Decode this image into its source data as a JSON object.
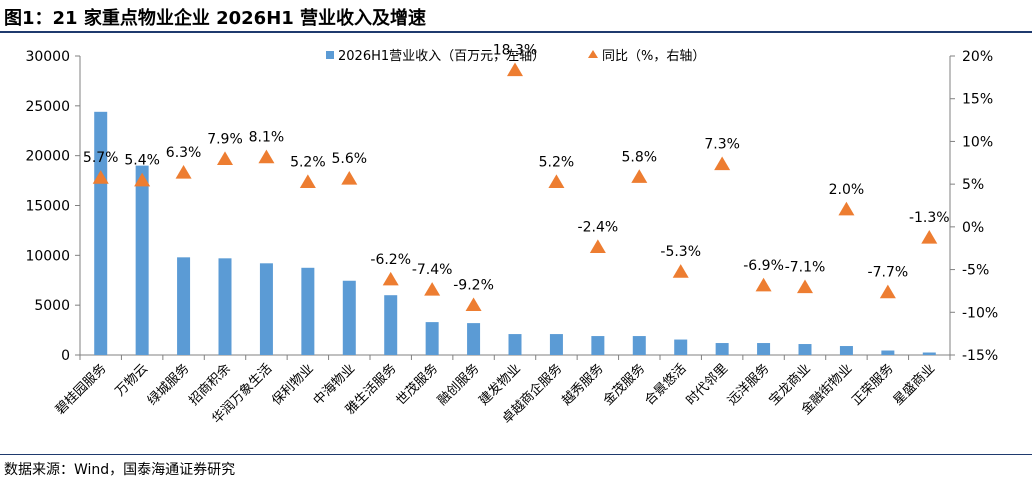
{
  "title": "图1：21 家重点物业企业 2026H1 营业收入及增速",
  "source": "数据来源：Wind，国泰海通证券研究",
  "chart_data": {
    "type": "bar",
    "categories": [
      "碧桂园服务",
      "万物云",
      "绿城服务",
      "招商积余",
      "华润万象生活",
      "保利物业",
      "中海物业",
      "雅生活服务",
      "世茂服务",
      "融创服务",
      "建发物业",
      "卓越商企服务",
      "越秀服务",
      "金茂服务",
      "合景悠活",
      "时代邻里",
      "远洋服务",
      "宝龙商业",
      "金融街物业",
      "正荣服务",
      "星盛商业"
    ],
    "series": [
      {
        "name": "2026H1营业收入（百万元，左轴）",
        "type": "bar",
        "axis": "left",
        "color": "#5b9bd5",
        "values": [
          24400,
          19000,
          9800,
          9700,
          9200,
          8750,
          7450,
          6000,
          3300,
          3200,
          2100,
          2100,
          1900,
          1900,
          1550,
          1200,
          1200,
          1100,
          900,
          450,
          250
        ]
      },
      {
        "name": "同比（%，右轴）",
        "type": "scatter",
        "axis": "right",
        "marker": "triangle",
        "color": "#ed7d31",
        "values": [
          5.7,
          5.4,
          6.3,
          7.9,
          8.1,
          5.2,
          5.6,
          -6.2,
          -7.4,
          -9.2,
          18.3,
          5.2,
          -2.4,
          5.8,
          -5.3,
          7.3,
          -6.9,
          -7.1,
          2.0,
          -7.7,
          -1.3
        ],
        "labels": [
          "5.7%",
          "5.4%",
          "6.3%",
          "7.9%",
          "8.1%",
          "5.2%",
          "5.6%",
          "-6.2%",
          "-7.4%",
          "-9.2%",
          "18.3%",
          "5.2%",
          "-2.4%",
          "5.8%",
          "-5.3%",
          "7.3%",
          "-6.9%",
          "-7.1%",
          "2.0%",
          "-7.7%",
          "-1.3%"
        ]
      }
    ],
    "y_left": {
      "min": 0,
      "max": 30000,
      "ticks": [
        "0",
        "5000",
        "10000",
        "15000",
        "20000",
        "25000",
        "30000"
      ]
    },
    "y_right": {
      "min": -15,
      "max": 20,
      "ticks": [
        "-15%",
        "-10%",
        "-5%",
        "0%",
        "5%",
        "10%",
        "15%",
        "20%"
      ]
    },
    "legend_position": "top-center",
    "grid": false
  }
}
